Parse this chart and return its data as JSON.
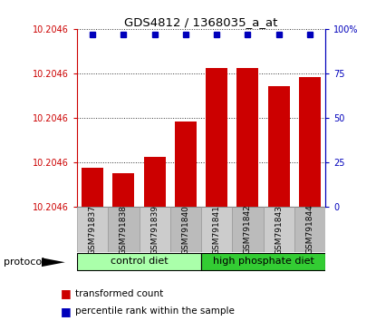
{
  "title": "GDS4812 / 1368035_a_at",
  "samples": [
    "GSM791837",
    "GSM791838",
    "GSM791839",
    "GSM791840",
    "GSM791841",
    "GSM791842",
    "GSM791843",
    "GSM791844"
  ],
  "bar_values": [
    22,
    19,
    28,
    48,
    78,
    78,
    68,
    73
  ],
  "percentile_values": [
    97,
    97,
    97,
    97,
    97,
    97,
    97,
    97
  ],
  "ymin": 0,
  "ymax": 100,
  "ytick_positions": [
    0,
    25,
    50,
    75,
    100
  ],
  "ytick_labels": [
    "10.2046",
    "10.2046",
    "10.2046",
    "10.2046",
    "10.2046"
  ],
  "right_yticks": [
    0,
    25,
    50,
    75,
    100
  ],
  "right_ytick_labels": [
    "0",
    "25",
    "50",
    "75",
    "100%"
  ],
  "bar_color": "#cc0000",
  "dot_color": "#0000bb",
  "protocol_groups": [
    {
      "label": "control diet",
      "start": 0,
      "end": 4,
      "color": "#aaffaa"
    },
    {
      "label": "high phosphate diet",
      "start": 4,
      "end": 8,
      "color": "#33cc33"
    }
  ],
  "legend_items": [
    {
      "label": "transformed count",
      "color": "#cc0000"
    },
    {
      "label": "percentile rank within the sample",
      "color": "#0000bb"
    }
  ],
  "protocol_label": "protocol",
  "grid_color": "#333333",
  "plot_bg": "#ffffff"
}
